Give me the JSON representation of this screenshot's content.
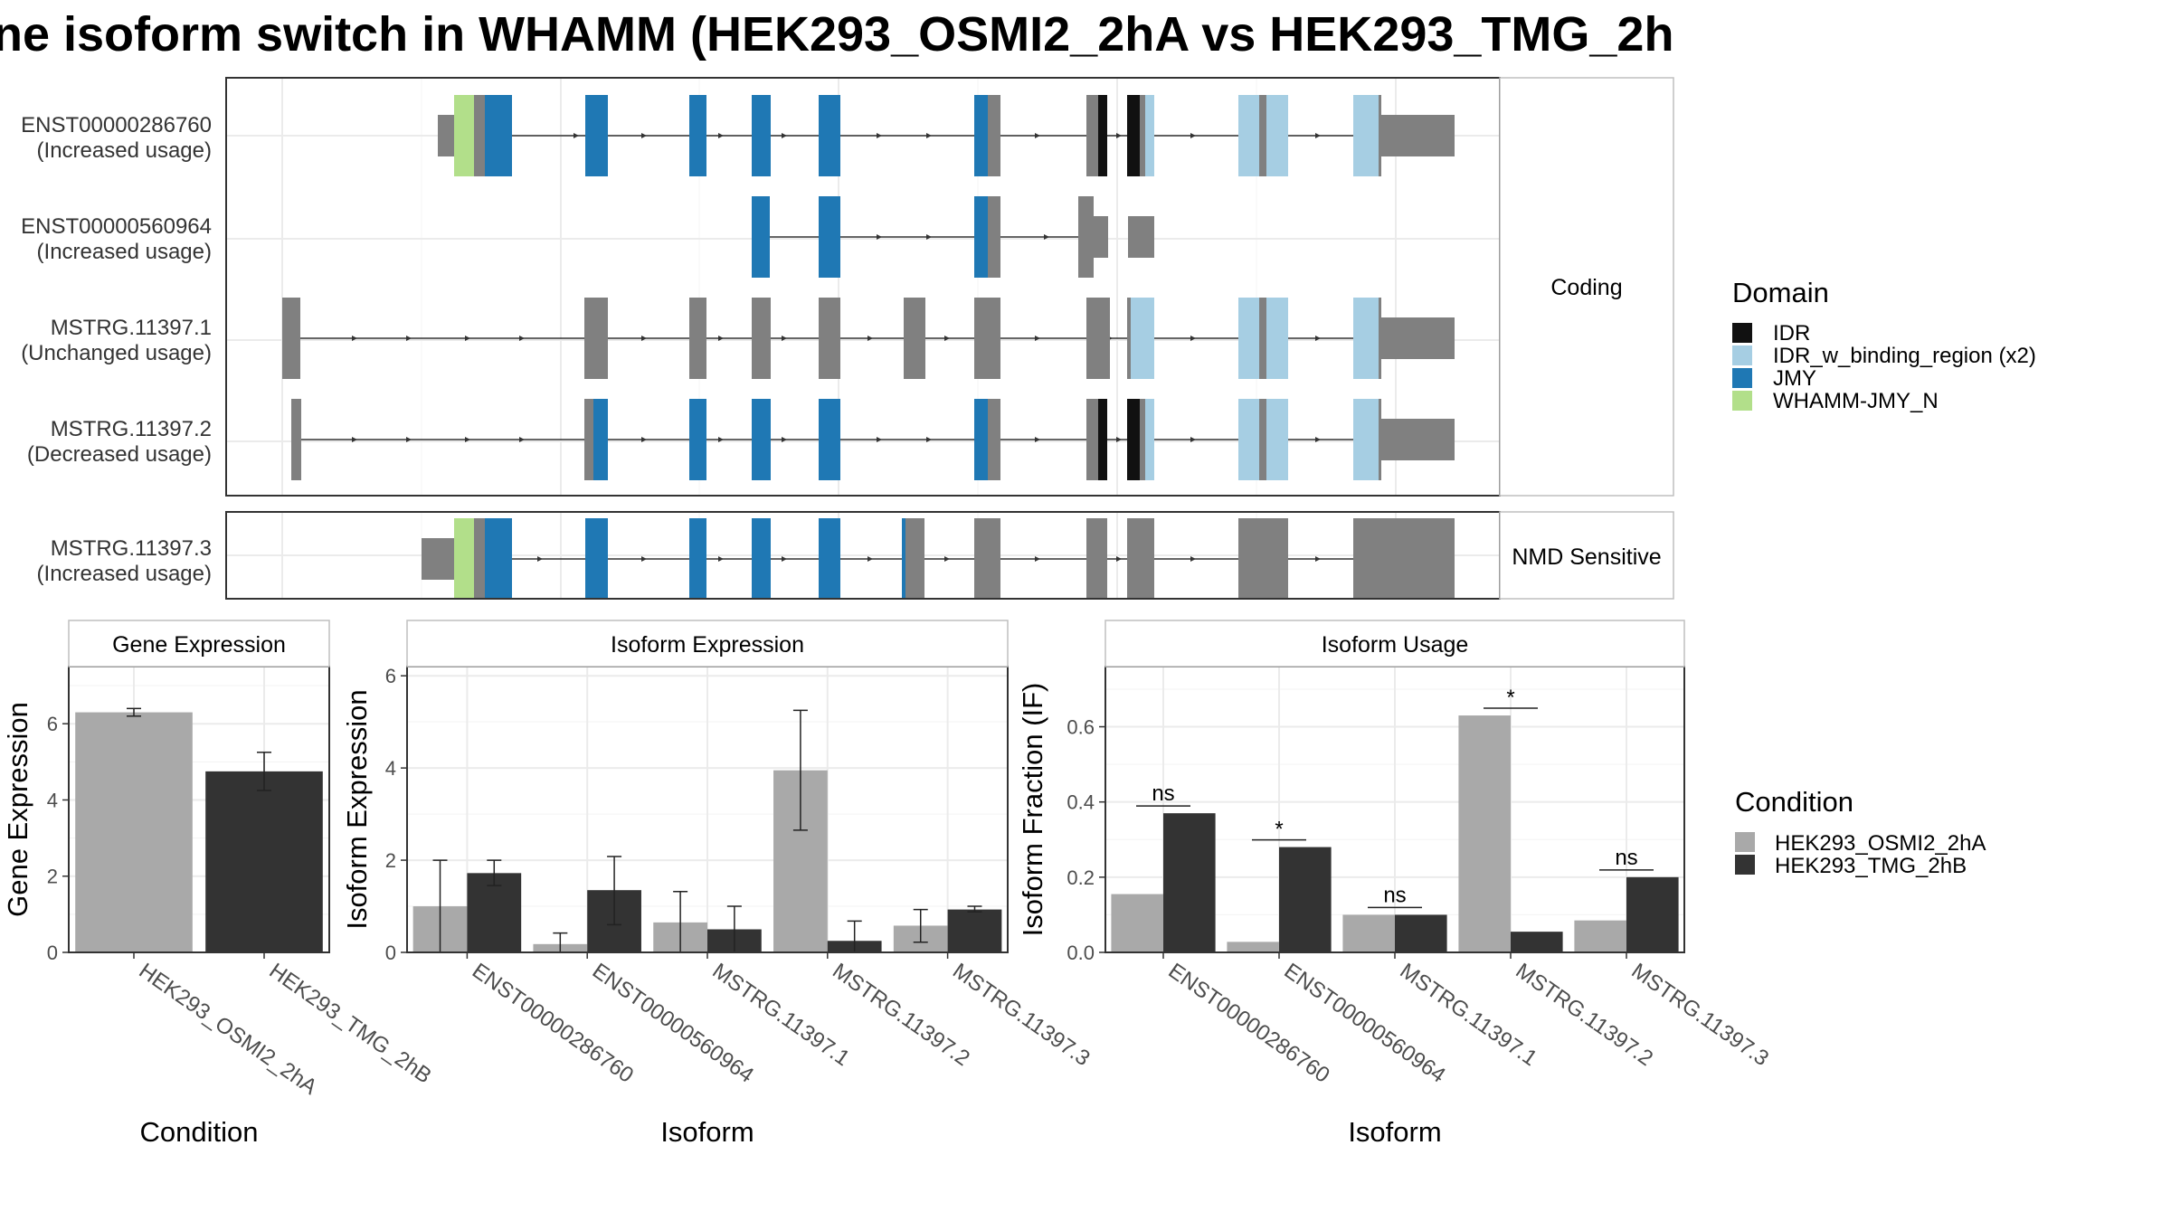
{
  "title": "ne isoform switch in WHAMM (HEK293_OSMI2_2hA vs HEK293_TMG_2h",
  "colors": {
    "IDR": "#111111",
    "IDR_w_binding_region": "#a6cee3",
    "JMY": "#1f78b4",
    "WHAMM-JMY_N": "#b2df8a",
    "exon": "#808080",
    "condA": "#a9a9a9",
    "condB": "#333333"
  },
  "facets": {
    "coding": "Coding",
    "nmd": "NMD Sensitive"
  },
  "transcripts": [
    {
      "id": "ENST00000286760",
      "usage": "(Increased usage)"
    },
    {
      "id": "ENST00000560964",
      "usage": "(Increased usage)"
    },
    {
      "id": "MSTRG.11397.1",
      "usage": "(Unchanged usage)"
    },
    {
      "id": "MSTRG.11397.2",
      "usage": "(Decreased usage)"
    },
    {
      "id": "MSTRG.11397.3",
      "usage": "(Increased usage)"
    }
  ],
  "domain_legend": {
    "title": "Domain",
    "items": [
      {
        "label": "IDR",
        "key": "IDR"
      },
      {
        "label": "IDR_w_binding_region (x2)",
        "key": "IDR_w_binding_region"
      },
      {
        "label": "JMY",
        "key": "JMY"
      },
      {
        "label": "WHAMM-JMY_N",
        "key": "WHAMM-JMY_N"
      }
    ]
  },
  "condition_legend": {
    "title": "Condition",
    "items": [
      "HEK293_OSMI2_2hA",
      "HEK293_TMG_2hB"
    ]
  },
  "chart_data": [
    {
      "type": "bar",
      "title": "Gene Expression",
      "xlabel": "Condition",
      "ylabel": "Gene Expression",
      "ylim": [
        0,
        7.5
      ],
      "yticks": [
        0,
        2,
        4,
        6
      ],
      "categories": [
        "HEK293_OSMI2_2hA",
        "HEK293_TMG_2hB"
      ],
      "values": [
        6.3,
        4.75
      ],
      "errors": [
        [
          6.2,
          6.4
        ],
        [
          4.25,
          5.25
        ]
      ]
    },
    {
      "type": "bar",
      "title": "Isoform Expression",
      "xlabel": "Isoform",
      "ylabel": "Isoform Expression",
      "ylim": [
        0,
        6.2
      ],
      "yticks": [
        0,
        2,
        4,
        6
      ],
      "categories": [
        "ENST00000286760",
        "ENST00000560964",
        "MSTRG.11397.1",
        "MSTRG.11397.2",
        "MSTRG.11397.3"
      ],
      "series": [
        {
          "name": "HEK293_OSMI2_2hA",
          "values": [
            1.0,
            0.18,
            0.65,
            3.95,
            0.58
          ],
          "errors": [
            [
              0,
              2.0
            ],
            [
              0,
              0.42
            ],
            [
              0,
              1.32
            ],
            [
              2.65,
              5.25
            ],
            [
              0.22,
              0.93
            ]
          ]
        },
        {
          "name": "HEK293_TMG_2hB",
          "values": [
            1.72,
            1.35,
            0.5,
            0.25,
            0.93
          ],
          "errors": [
            [
              1.45,
              2.0
            ],
            [
              0.6,
              2.08
            ],
            [
              0,
              1.0
            ],
            [
              0,
              0.68
            ],
            [
              0.88,
              1.0
            ]
          ]
        }
      ]
    },
    {
      "type": "bar",
      "title": "Isoform Usage",
      "xlabel": "Isoform",
      "ylabel": "Isoform Fraction (IF)",
      "ylim": [
        0,
        0.76
      ],
      "yticks": [
        0.0,
        0.2,
        0.4,
        0.6
      ],
      "ytick_labels": [
        "0.0",
        "0.2",
        "0.4",
        "0.6"
      ],
      "categories": [
        "ENST00000286760",
        "ENST00000560964",
        "MSTRG.11397.1",
        "MSTRG.11397.2",
        "MSTRG.11397.3"
      ],
      "series": [
        {
          "name": "HEK293_OSMI2_2hA",
          "values": [
            0.155,
            0.028,
            0.1,
            0.63,
            0.085
          ]
        },
        {
          "name": "HEK293_TMG_2hB",
          "values": [
            0.37,
            0.28,
            0.1,
            0.055,
            0.2
          ]
        }
      ],
      "significance": [
        "ns",
        "*",
        "ns",
        "*",
        "ns"
      ]
    }
  ]
}
